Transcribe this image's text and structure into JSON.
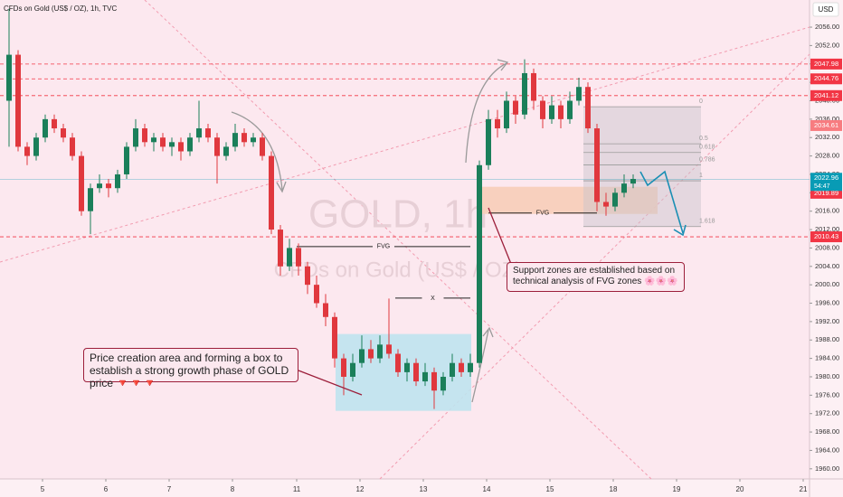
{
  "chart_data": {
    "type": "candlestick",
    "title": "CFDs on Gold (US$ / OZ), 1h, TVC",
    "currency": "USD",
    "watermark": "GOLD, 1h",
    "watermark_subtitle": "CFDs on Gold (US$ / OZ)",
    "up_color": "#1b7f5a",
    "down_color": "#e0383e",
    "x": [
      0,
      1,
      2,
      3,
      4,
      5,
      6,
      7,
      8,
      9,
      10,
      11,
      12,
      13,
      14,
      15,
      16,
      17,
      18,
      19,
      20,
      21,
      22,
      23,
      24,
      25,
      26,
      27,
      28,
      29,
      30,
      31,
      32,
      33,
      34,
      35,
      36,
      37,
      38,
      39,
      40,
      41,
      42,
      43,
      44,
      45,
      46,
      47,
      48,
      49,
      50,
      51,
      52,
      53,
      54,
      55,
      56,
      57,
      58,
      59,
      60,
      61,
      62,
      63,
      64,
      65,
      66,
      67,
      68,
      69
    ],
    "open": [
      2040,
      2050,
      2030,
      2028,
      2032,
      2036,
      2034,
      2032,
      2028,
      2016,
      2021,
      2022,
      2021,
      2024,
      2030,
      2034,
      2031,
      2032,
      2030,
      2031,
      2029,
      2032,
      2034,
      2032,
      2028,
      2030,
      2033,
      2031,
      2032,
      2028,
      2012,
      2004,
      2008,
      2004,
      2000,
      1996,
      1993,
      1984,
      1980,
      1983,
      1986,
      1984,
      1987,
      1985,
      1981,
      1983,
      1979,
      1981,
      1977,
      1980,
      1983,
      1981,
      1983,
      2026,
      2036,
      2034,
      2040,
      2037,
      2046,
      2040,
      2036,
      2039,
      2036,
      2040,
      2043,
      2034,
      2018,
      2017,
      2020,
      2022
    ],
    "high": [
      2060,
      2051,
      2031,
      2033,
      2037,
      2037,
      2035,
      2033,
      2029,
      2022,
      2024,
      2023,
      2025,
      2031,
      2036,
      2035,
      2033,
      2033,
      2032,
      2032,
      2033,
      2040,
      2035,
      2033,
      2031,
      2035,
      2034,
      2033,
      2033,
      2029,
      2013,
      2010,
      2009,
      2005,
      2002,
      1998,
      1994,
      1985,
      1985,
      1989,
      1988,
      1989,
      1997,
      1986,
      1984,
      1984,
      1983,
      1982,
      1981,
      1985,
      1984,
      1985,
      2027,
      2038,
      2038,
      2042,
      2041,
      2049,
      2047,
      2041,
      2041,
      2040,
      2042,
      2045,
      2044,
      2035,
      2020,
      2021,
      2024,
      2024
    ],
    "low": [
      2030,
      2029,
      2026,
      2027,
      2031,
      2033,
      2031,
      2027,
      2015,
      2011,
      2020,
      2019,
      2020,
      2023,
      2029,
      2030,
      2029,
      2029,
      2028,
      2027,
      2028,
      2031,
      2031,
      2022,
      2027,
      2029,
      2030,
      2030,
      2027,
      2011,
      2002,
      2003,
      2002,
      1998,
      1995,
      1991,
      1982,
      1976,
      1979,
      1982,
      1983,
      1983,
      1984,
      1980,
      1979,
      1978,
      1978,
      1973,
      1976,
      1979,
      1980,
      1980,
      1982,
      2025,
      2032,
      2033,
      2035,
      2036,
      2038,
      2034,
      2035,
      2034,
      2035,
      2039,
      2033,
      2016,
      2015,
      2016,
      2019,
      2021
    ],
    "close": [
      2050,
      2030,
      2028,
      2032,
      2036,
      2034,
      2032,
      2028,
      2016,
      2021,
      2022,
      2021,
      2024,
      2030,
      2034,
      2031,
      2032,
      2030,
      2031,
      2029,
      2032,
      2034,
      2032,
      2028,
      2030,
      2033,
      2031,
      2032,
      2028,
      2012,
      2004,
      2008,
      2004,
      2000,
      1996,
      1993,
      1984,
      1980,
      1983,
      1986,
      1984,
      1987,
      1985,
      1981,
      1983,
      1979,
      1981,
      1977,
      1980,
      1983,
      1981,
      1983,
      2026,
      2036,
      2034,
      2040,
      2037,
      2046,
      2040,
      2036,
      2039,
      2036,
      2040,
      2043,
      2034,
      2018,
      2017,
      2020,
      2022,
      2023
    ],
    "xlim": [
      -1,
      88.5
    ],
    "xticks": [
      {
        "value": 3.7,
        "label": "5"
      },
      {
        "value": 10.7,
        "label": "6"
      },
      {
        "value": 17.7,
        "label": "7"
      },
      {
        "value": 24.7,
        "label": "8"
      },
      {
        "value": 31.8,
        "label": "11"
      },
      {
        "value": 38.8,
        "label": "12"
      },
      {
        "value": 45.8,
        "label": "13"
      },
      {
        "value": 52.8,
        "label": "14"
      },
      {
        "value": 59.8,
        "label": "15"
      },
      {
        "value": 66.8,
        "label": "18"
      },
      {
        "value": 73.8,
        "label": "19"
      },
      {
        "value": 80.8,
        "label": "20"
      },
      {
        "value": 87.8,
        "label": "21"
      }
    ],
    "ylim": [
      1957.8,
      2061.9
    ],
    "yticks": [
      {
        "value": 1960,
        "label": "1960.00"
      },
      {
        "value": 1964,
        "label": "1964.00"
      },
      {
        "value": 1968,
        "label": "1968.00"
      },
      {
        "value": 1972,
        "label": "1972.00"
      },
      {
        "value": 1976,
        "label": "1976.00"
      },
      {
        "value": 1980,
        "label": "1980.00"
      },
      {
        "value": 1984,
        "label": "1984.00"
      },
      {
        "value": 1988,
        "label": "1988.00"
      },
      {
        "value": 1992,
        "label": "1992.00"
      },
      {
        "value": 1996,
        "label": "1996.00"
      },
      {
        "value": 2000,
        "label": "2000.00"
      },
      {
        "value": 2004,
        "label": "2004.00"
      },
      {
        "value": 2008,
        "label": "2008.00"
      },
      {
        "value": 2012,
        "label": "2012.00"
      },
      {
        "value": 2016,
        "label": "2016.00"
      },
      {
        "value": 2020,
        "label": "2020.00"
      },
      {
        "value": 2024,
        "label": "2024.00"
      },
      {
        "value": 2028,
        "label": "2028.00"
      },
      {
        "value": 2032,
        "label": "2032.00"
      },
      {
        "value": 2036,
        "label": "2036.00"
      },
      {
        "value": 2040,
        "label": "2040.00"
      },
      {
        "value": 2044,
        "label": "2044.00"
      },
      {
        "value": 2048,
        "label": "2048.00"
      },
      {
        "value": 2052,
        "label": "2052.00"
      },
      {
        "value": 2056,
        "label": "2056.00"
      }
    ],
    "price_lines": [
      {
        "value": 2047.98,
        "color": "#f23645",
        "line": true
      },
      {
        "value": 2044.76,
        "color": "#f23645",
        "line": true
      },
      {
        "value": 2041.12,
        "color": "#f23645",
        "line": true
      },
      {
        "value": 2034.61,
        "color": "#f77c80",
        "line": false
      },
      {
        "value": 2019.89,
        "color": "#f23645",
        "line": false
      },
      {
        "value": 2010.43,
        "color": "#f23645",
        "line": true
      }
    ],
    "current_price": {
      "value": 2022.96,
      "countdown": "54:47",
      "color": "#089bb5"
    },
    "zones": [
      {
        "x": [
          36.1,
          51.1
        ],
        "y": [
          1972.6,
          1989.3
        ],
        "color": "#bfe3ee"
      },
      {
        "x": [
          52,
          71.7
        ],
        "y": [
          2015.4,
          2021.3
        ],
        "color": "#f7cdb8"
      }
    ],
    "fvg": [
      {
        "label": "FVG",
        "x": [
          31.8,
          51
        ],
        "y": 2008.3
      },
      {
        "label": "X",
        "x": [
          42.7,
          51
        ],
        "y": 1997.1
      },
      {
        "label": "FVG",
        "x": [
          53,
          65
        ],
        "y": 2015.6
      }
    ],
    "fib": {
      "levels": [
        0,
        0.5,
        0.618,
        0.786,
        1,
        1.618
      ],
      "x": [
        63.5,
        76.5
      ],
      "high": 2038.7,
      "low": 2022.6
    },
    "annotations": [
      {
        "text": "Price creation area and forming a box to establish a strong growth phase of GOLD price 🔻🔻🔻"
      },
      {
        "text": "Support zones are established based on technical analysis of FVG zones 🌸🌸🌸"
      }
    ]
  }
}
